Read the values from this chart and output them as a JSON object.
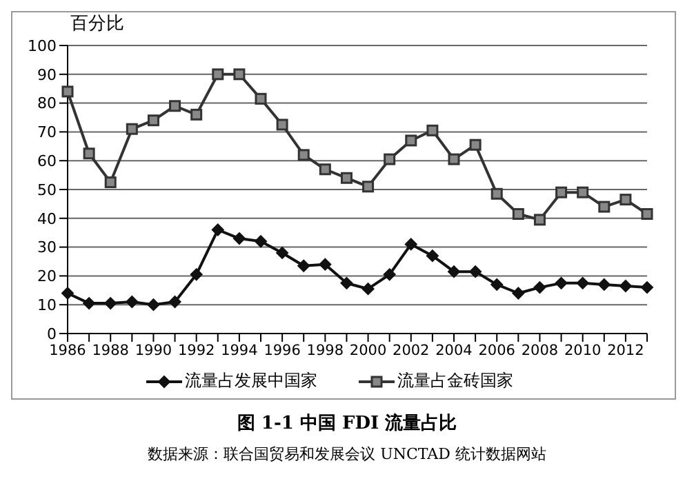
{
  "chart_data": {
    "type": "line",
    "title": "图 1-1 中国 FDI 流量占比",
    "ylabel": "百分比",
    "annotations": [
      "数据来源：联合国贸易和发展会议 UNCTAD 统计数据网站"
    ],
    "categories": [
      "1986",
      null,
      "1988",
      null,
      "1990",
      null,
      "1992",
      null,
      "1994",
      null,
      "1996",
      null,
      "1998",
      null,
      "2000",
      null,
      "2002",
      null,
      "2004",
      null,
      "2006",
      null,
      "2008",
      null,
      "2010",
      null,
      "2012",
      null
    ],
    "series": [
      {
        "name": "流量占发展中国家",
        "color": "#111111",
        "marker": "diamond",
        "values": [
          14,
          10.5,
          10.5,
          11,
          10,
          11,
          20.5,
          36,
          33,
          32,
          28,
          23.5,
          24,
          17.5,
          15.5,
          20.5,
          31,
          27,
          21.5,
          21.5,
          17,
          14,
          16,
          17.5,
          17.5,
          17,
          16.5,
          16
        ]
      },
      {
        "name": "流量占金砖国家",
        "color": "#333333",
        "marker": "square",
        "values": [
          84,
          62.5,
          52.5,
          71,
          74,
          79,
          76,
          90,
          90,
          81.5,
          72.5,
          62,
          57,
          54,
          51,
          60.5,
          67,
          70.5,
          60.5,
          65.5,
          48.5,
          41.5,
          39.5,
          49,
          49,
          44,
          46.5,
          41.5
        ]
      }
    ],
    "ylim": [
      0,
      100
    ],
    "yticks": [
      0,
      10,
      20,
      30,
      40,
      50,
      60,
      70,
      80,
      90,
      100
    ],
    "grid": "y",
    "legend": "bottom",
    "line_style": "solid"
  }
}
